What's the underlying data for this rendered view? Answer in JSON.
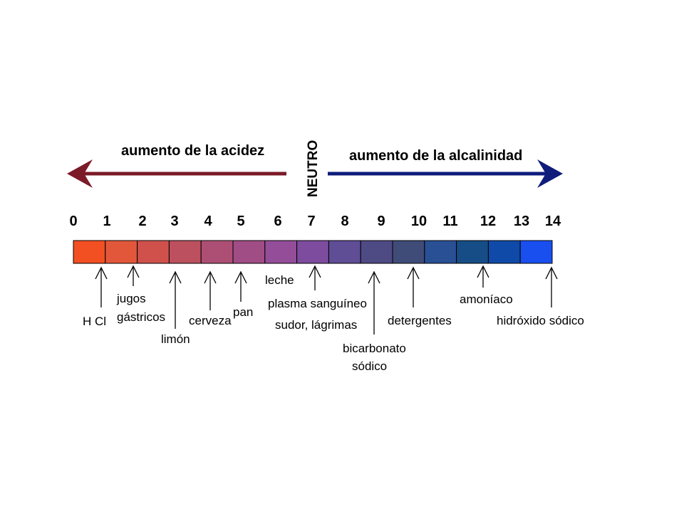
{
  "acid_label": "aumento de la acidez",
  "alkaline_label": "aumento de la alcalinidad",
  "neutral_label": "NEUTRO",
  "colors": {
    "acid_arrow": "#7b1a28",
    "alkaline_arrow": "#0f1c7a",
    "scale_cells": [
      "#f24f23",
      "#e2573a",
      "#d0514c",
      "#bd505e",
      "#ad4f74",
      "#a04d86",
      "#944d98",
      "#7d4c9e",
      "#5f4d96",
      "#4e4a84",
      "#3f4c78",
      "#294f94",
      "#164d86",
      "#0f4aa8",
      "#1a4fef"
    ]
  },
  "scale": {
    "numbers": [
      "0",
      "1",
      "2",
      "3",
      "4",
      "5",
      "6",
      "7",
      "8",
      "9",
      "10",
      "11",
      "12",
      "13",
      "14"
    ],
    "min": 0,
    "max": 14
  },
  "substances": [
    {
      "id": "hcl",
      "lines": [
        "H Cl"
      ]
    },
    {
      "id": "jugos",
      "lines": [
        "jugos",
        "gástricos"
      ]
    },
    {
      "id": "limon",
      "lines": [
        "limón"
      ]
    },
    {
      "id": "cerveza",
      "lines": [
        "cerveza"
      ]
    },
    {
      "id": "pan",
      "lines": [
        "pan"
      ]
    },
    {
      "id": "leche",
      "lines": [
        "leche"
      ]
    },
    {
      "id": "plasma",
      "lines": [
        "plasma sanguíneo",
        "sudor, lágrimas"
      ]
    },
    {
      "id": "bicarbonato",
      "lines": [
        "bicarbonato",
        "sódico"
      ]
    },
    {
      "id": "detergentes",
      "lines": [
        "detergentes"
      ]
    },
    {
      "id": "amoniaco",
      "lines": [
        "amoníaco"
      ]
    },
    {
      "id": "hidroxido",
      "lines": [
        "hidróxido sódico"
      ]
    }
  ]
}
